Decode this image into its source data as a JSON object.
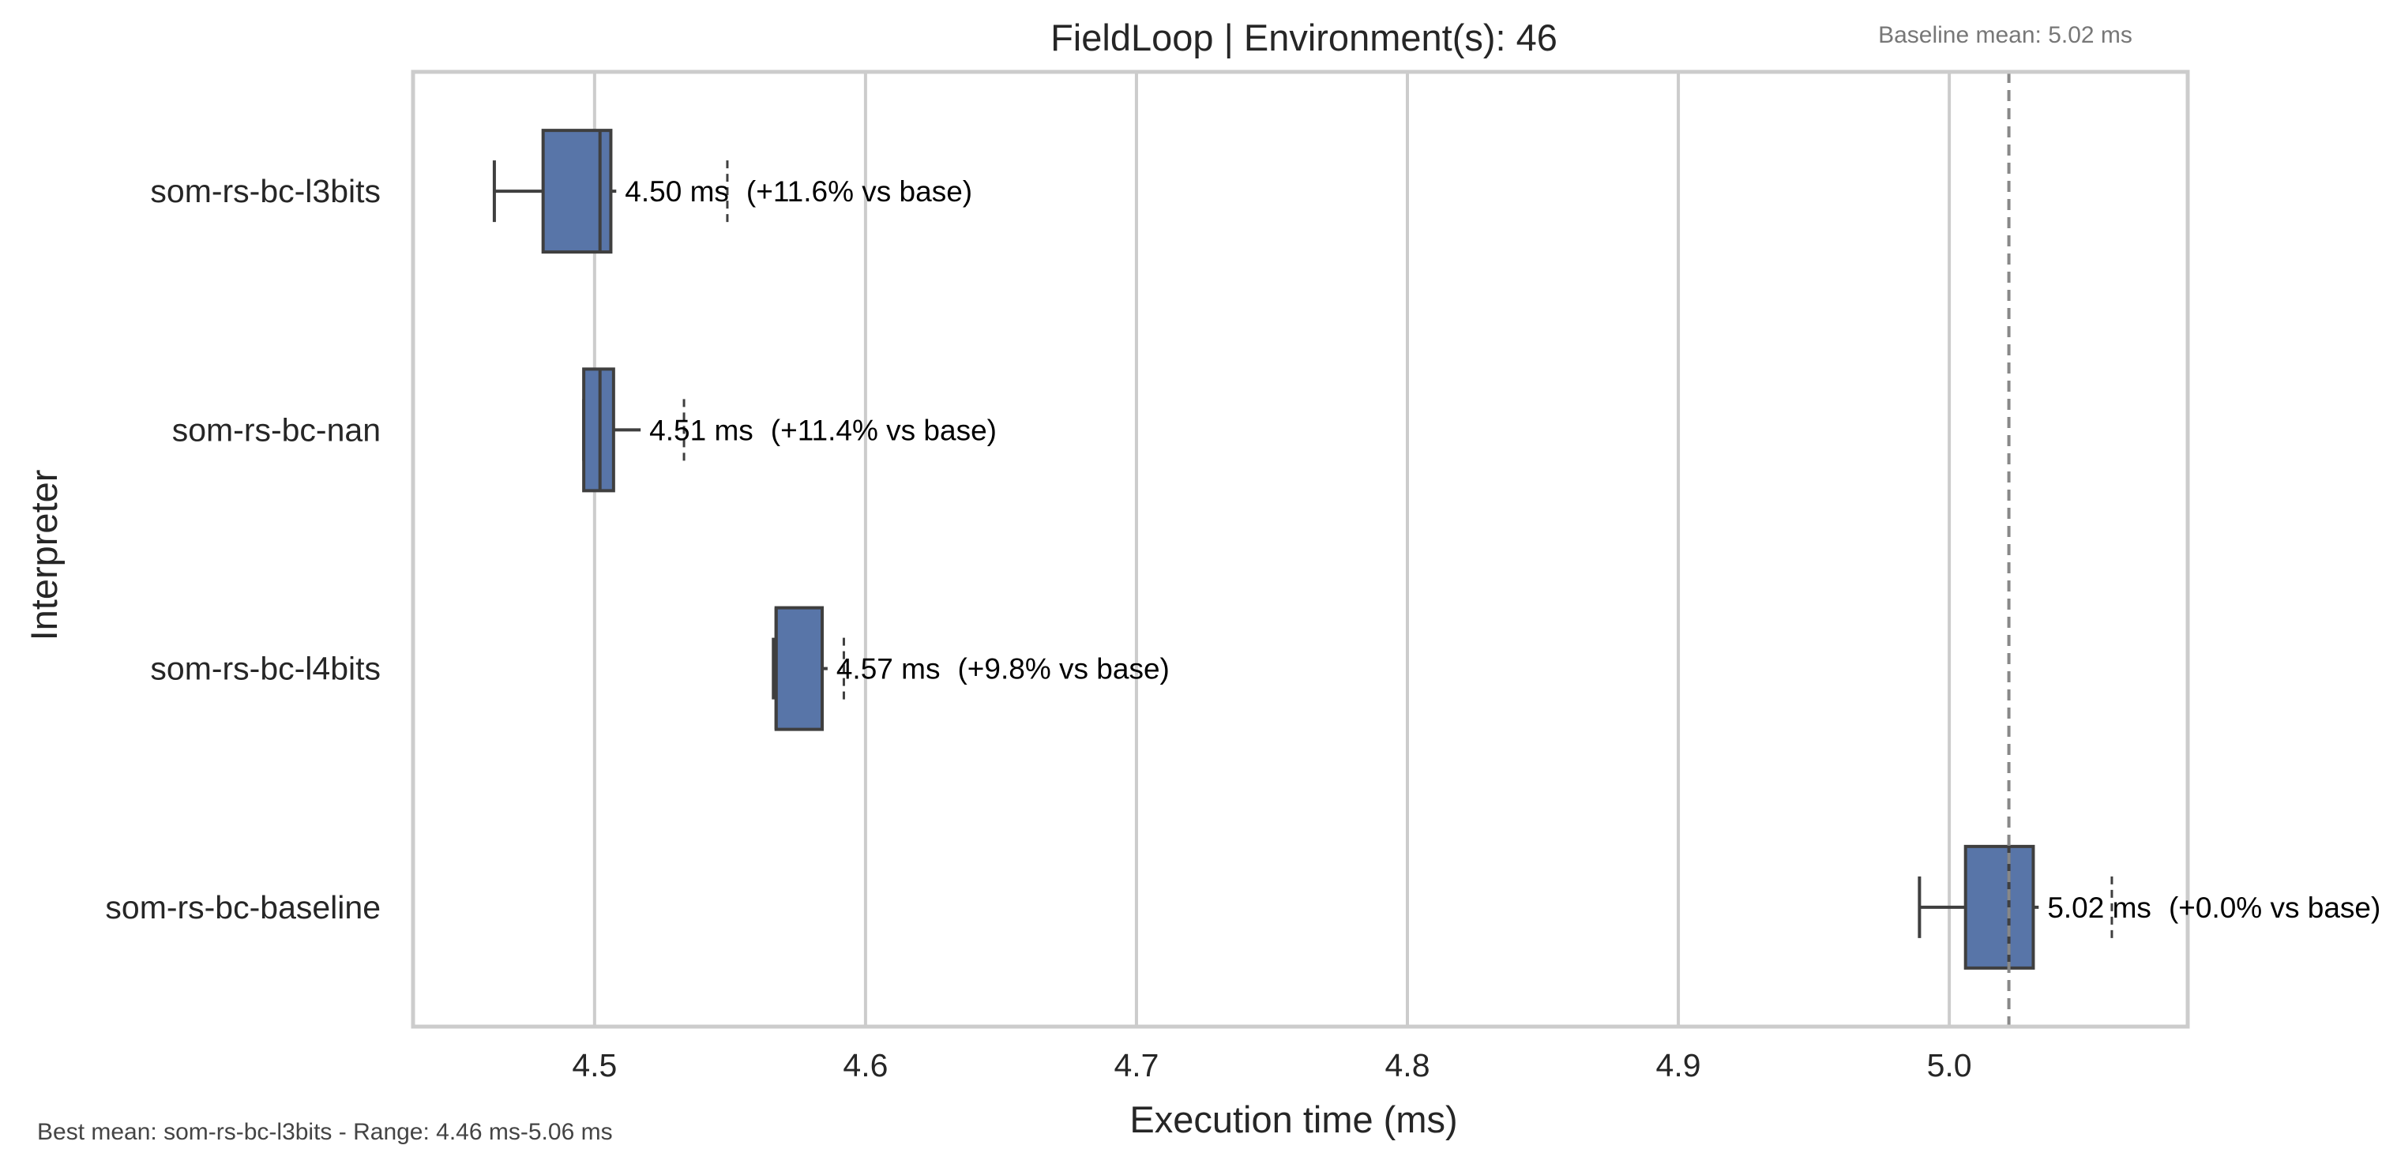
{
  "chart_data": {
    "type": "box",
    "orientation": "horizontal",
    "title": "FieldLoop | Environment(s): 46",
    "xlabel": "Execution time (ms)",
    "ylabel": "Interpreter",
    "xlim": [
      4.433,
      5.088
    ],
    "xticks": [
      "4.5",
      "4.6",
      "4.7",
      "4.8",
      "4.9",
      "5.0"
    ],
    "grid": "vertical",
    "color": "#5875a8",
    "categories": [
      "som-rs-bc-l3bits",
      "som-rs-bc-nan",
      "som-rs-bc-l4bits",
      "som-rs-bc-baseline"
    ],
    "boxes": [
      {
        "name": "som-rs-bc-l3bits",
        "whisker_low": 4.463,
        "q1": 4.481,
        "median": 4.502,
        "q3": 4.506,
        "whisker_high": 4.508,
        "flier": 4.549,
        "mean_label": "4.50 ms",
        "delta_label": "(+11.6% vs base)"
      },
      {
        "name": "som-rs-bc-nan",
        "whisker_low": 4.496,
        "q1": 4.496,
        "median": 4.502,
        "q3": 4.507,
        "whisker_high": 4.517,
        "flier": 4.533,
        "mean_label": "4.51 ms",
        "delta_label": "(+11.4% vs base)"
      },
      {
        "name": "som-rs-bc-l4bits",
        "whisker_low": 4.566,
        "q1": 4.567,
        "median": 4.567,
        "q3": 4.584,
        "whisker_high": 4.586,
        "flier": 4.592,
        "mean_label": "4.57 ms",
        "delta_label": "(+9.8% vs base)"
      },
      {
        "name": "som-rs-bc-baseline",
        "whisker_low": 4.989,
        "q1": 5.006,
        "median": 5.022,
        "q3": 5.031,
        "whisker_high": 5.033,
        "flier": 5.06,
        "mean_label": "5.02 ms",
        "delta_label": "(+0.0% vs base)"
      }
    ],
    "baseline_mean": 5.022,
    "baseline_note": "Baseline mean: 5.02 ms",
    "footer": "Best mean: som-rs-bc-l3bits - Range: 4.46 ms-5.06 ms"
  }
}
